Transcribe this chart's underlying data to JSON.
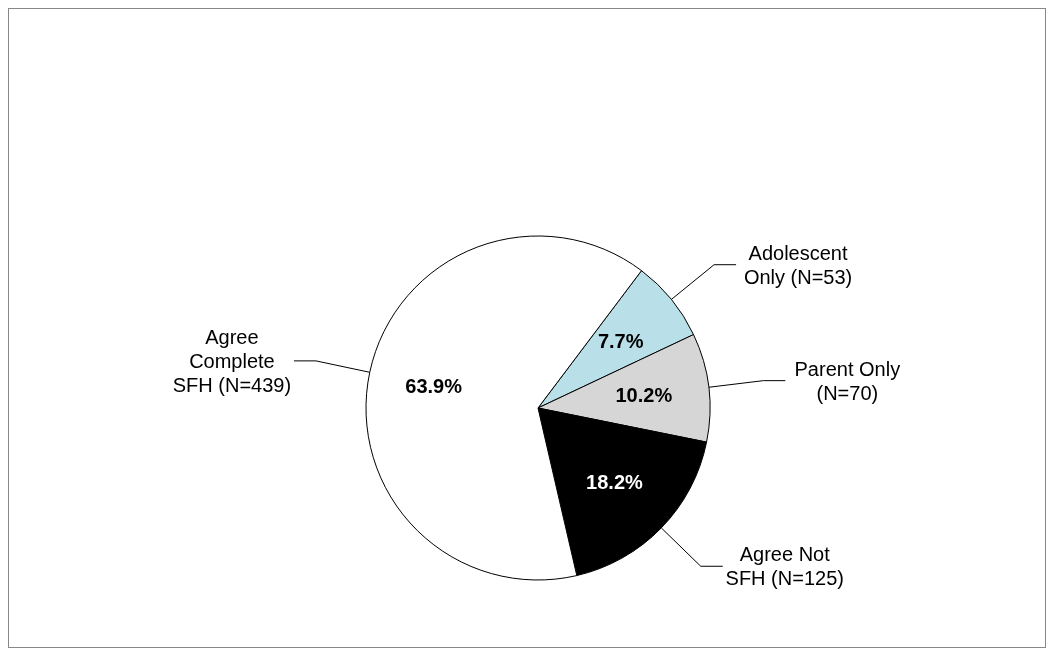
{
  "chart_data": {
    "type": "pie",
    "categories": [
      "Adolescent Only (N=53)",
      "Parent Only (N=70)",
      "Agree Not SFH (N=125)",
      "Agree Complete SFH (N=439)"
    ],
    "values": [
      7.7,
      10.2,
      18.2,
      63.9
    ],
    "colors": [
      "#b9dfe8",
      "#d6d6d6",
      "#000000",
      "#ffffff"
    ],
    "value_labels": [
      "7.7%",
      "10.2%",
      "18.2%",
      "63.9%"
    ]
  }
}
